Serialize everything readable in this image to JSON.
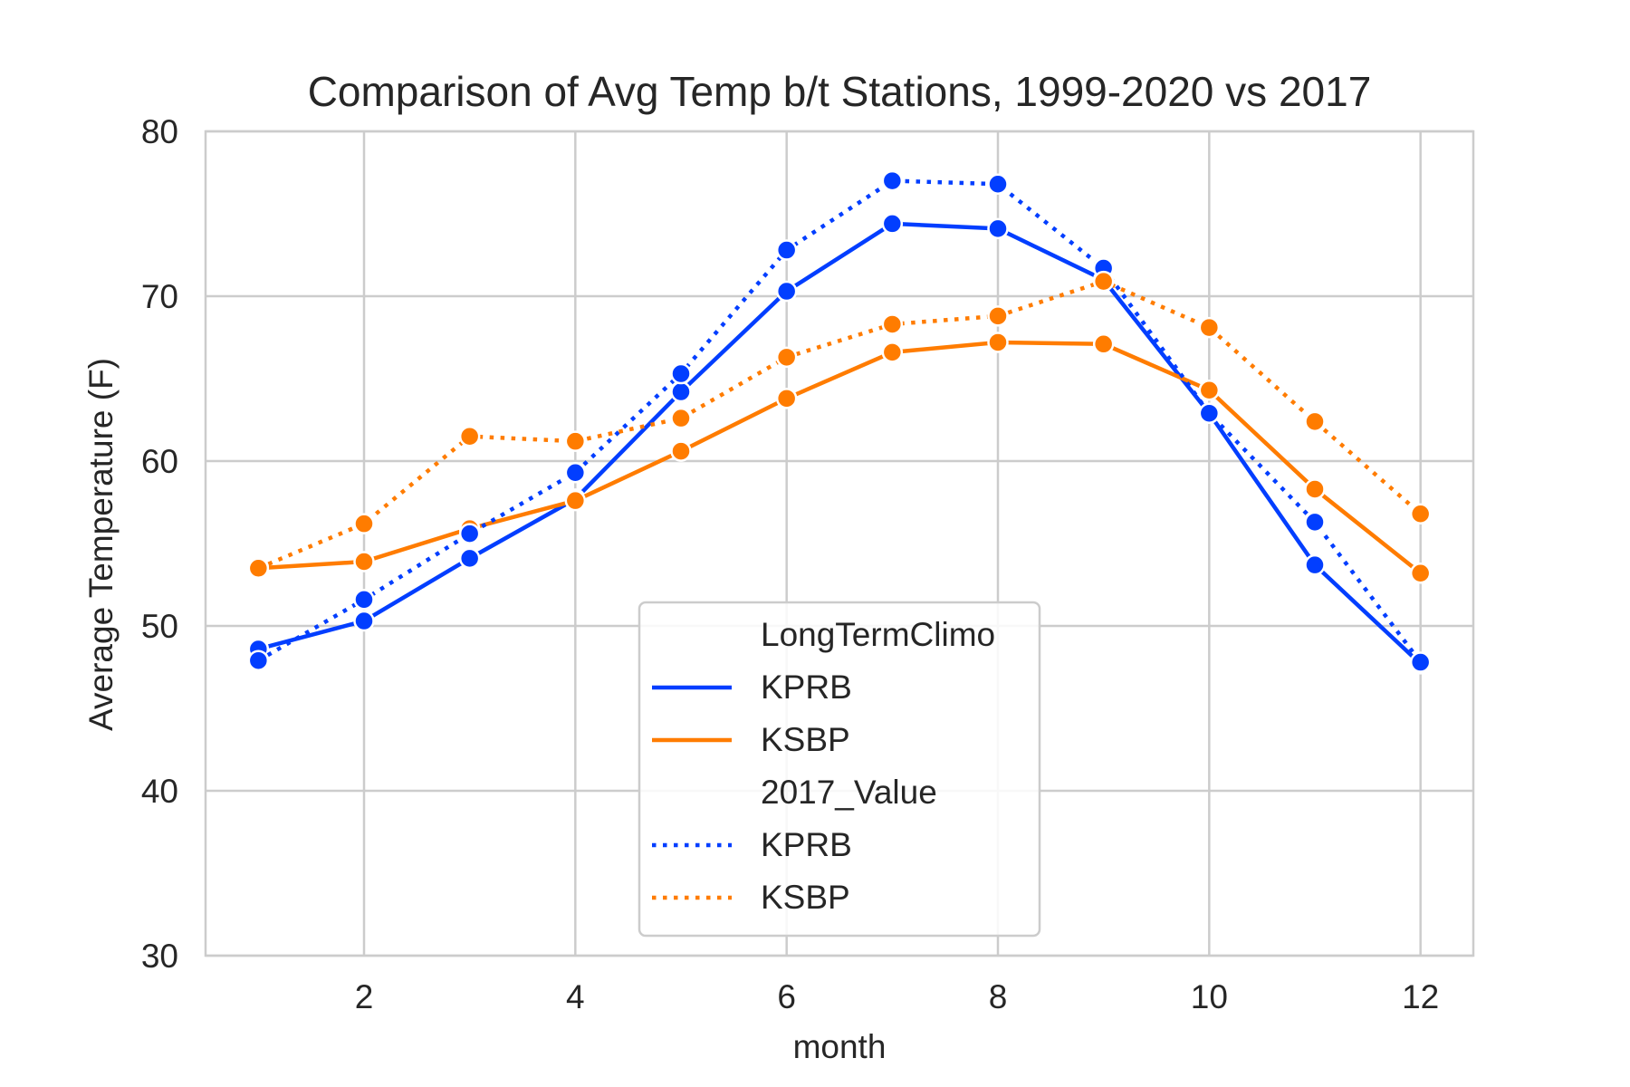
{
  "chart_data": {
    "type": "line",
    "title": "Comparison of Avg Temp b/t Stations, 1999-2020 vs 2017",
    "xlabel": "month",
    "ylabel": "Average Temperature (F)",
    "xlim": [
      0.5,
      12.5
    ],
    "ylim": [
      30,
      80
    ],
    "xticks": [
      2,
      4,
      6,
      8,
      10,
      12
    ],
    "yticks": [
      30,
      40,
      50,
      60,
      70,
      80
    ],
    "grid": true,
    "legend_position": "lower-center",
    "x": [
      1,
      2,
      3,
      4,
      5,
      6,
      7,
      8,
      9,
      10,
      11,
      12
    ],
    "legend_groups": [
      {
        "title": "LongTermClimo",
        "entries": [
          {
            "label": "KPRB",
            "color": "#023eff",
            "dash": "solid"
          },
          {
            "label": "KSBP",
            "color": "#ff7c00",
            "dash": "solid"
          }
        ]
      },
      {
        "title": "2017_Value",
        "entries": [
          {
            "label": "KPRB",
            "color": "#023eff",
            "dash": "dotted"
          },
          {
            "label": "KSBP",
            "color": "#ff7c00",
            "dash": "dotted"
          }
        ]
      }
    ],
    "series": [
      {
        "group": "LongTermClimo",
        "station": "KPRB",
        "color": "#023eff",
        "dash": "solid",
        "values": [
          48.6,
          50.3,
          54.1,
          57.7,
          64.2,
          70.3,
          74.4,
          74.1,
          71.0,
          62.9,
          53.7,
          47.7
        ]
      },
      {
        "group": "LongTermClimo",
        "station": "KSBP",
        "color": "#ff7c00",
        "dash": "solid",
        "values": [
          53.5,
          53.9,
          55.9,
          57.6,
          60.6,
          63.8,
          66.6,
          67.2,
          67.1,
          64.3,
          58.3,
          53.2
        ]
      },
      {
        "group": "2017_Value",
        "station": "KPRB",
        "color": "#023eff",
        "dash": "dotted",
        "values": [
          47.9,
          51.6,
          55.6,
          59.3,
          65.3,
          72.8,
          77.0,
          76.8,
          71.7,
          62.9,
          56.3,
          47.8
        ]
      },
      {
        "group": "2017_Value",
        "station": "KSBP",
        "color": "#ff7c00",
        "dash": "dotted",
        "values": [
          53.5,
          56.2,
          61.5,
          61.2,
          62.6,
          66.3,
          68.3,
          68.8,
          70.9,
          68.1,
          62.4,
          56.8
        ]
      }
    ]
  }
}
